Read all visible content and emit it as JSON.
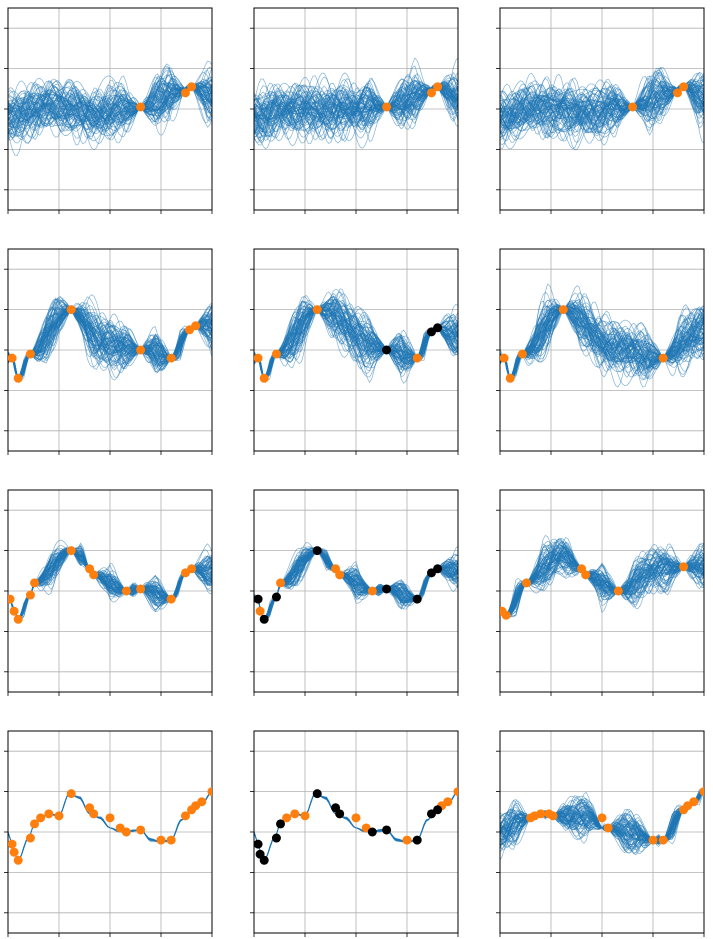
{
  "figure": {
    "rows": 4,
    "cols": 3,
    "colors": {
      "samples": "#1f77b4",
      "observed": "#ff7f0e",
      "highlighted": "#000000",
      "grid": "#b0b0b0",
      "axes": "#000000"
    }
  },
  "chart_data": [
    {
      "type": "line",
      "panel": "r1c1",
      "xlim": [
        0,
        1
      ],
      "ylim": [
        -2.5,
        2.5
      ],
      "grid": true,
      "sample_amplitude": 0.55,
      "sample_count": 80,
      "mean": {
        "x": [
          0,
          0.2,
          0.4,
          0.66,
          0.82,
          0.9,
          1
        ],
        "y": [
          -0.2,
          0.05,
          -0.1,
          0.05,
          0.4,
          0.55,
          0.3
        ]
      },
      "points_observed": {
        "x": [
          0.65,
          0.87,
          0.9
        ],
        "y": [
          0.05,
          0.4,
          0.55
        ]
      },
      "points_highlighted": {
        "x": [],
        "y": []
      }
    },
    {
      "type": "line",
      "panel": "r1c2",
      "xlim": [
        0,
        1
      ],
      "ylim": [
        -2.5,
        2.5
      ],
      "grid": true,
      "sample_amplitude": 0.55,
      "sample_count": 80,
      "mean": {
        "x": [
          0,
          0.2,
          0.4,
          0.65,
          0.82,
          0.9,
          1
        ],
        "y": [
          -0.2,
          0.05,
          -0.1,
          0.05,
          0.4,
          0.55,
          0.3
        ]
      },
      "points_observed": {
        "x": [
          0.65,
          0.87,
          0.9
        ],
        "y": [
          0.05,
          0.4,
          0.55
        ]
      },
      "points_highlighted": {
        "x": [],
        "y": []
      }
    },
    {
      "type": "line",
      "panel": "r1c3",
      "xlim": [
        0,
        1
      ],
      "ylim": [
        -2.5,
        2.5
      ],
      "grid": true,
      "sample_amplitude": 0.55,
      "sample_count": 80,
      "mean": {
        "x": [
          0,
          0.2,
          0.4,
          0.65,
          0.82,
          0.9,
          1
        ],
        "y": [
          -0.2,
          0.05,
          -0.1,
          0.05,
          0.4,
          0.55,
          0.3
        ]
      },
      "points_observed": {
        "x": [
          0.65,
          0.87,
          0.9
        ],
        "y": [
          0.05,
          0.4,
          0.55
        ]
      },
      "points_highlighted": {
        "x": [],
        "y": []
      }
    },
    {
      "type": "line",
      "panel": "r2c1",
      "xlim": [
        0,
        1
      ],
      "ylim": [
        -2.5,
        2.5
      ],
      "grid": true,
      "sample_amplitude": 0.55,
      "sample_count": 80,
      "mean": {
        "x": [
          0.02,
          0.05,
          0.11,
          0.3,
          0.48,
          0.65,
          0.8,
          0.89,
          0.92,
          1
        ],
        "y": [
          -0.2,
          -0.7,
          -0.1,
          1.0,
          0.2,
          0.0,
          -0.2,
          0.5,
          0.6,
          0.6
        ]
      },
      "points_observed": {
        "x": [
          0.02,
          0.05,
          0.11,
          0.31,
          0.65,
          0.8,
          0.89,
          0.92
        ],
        "y": [
          -0.2,
          -0.7,
          -0.1,
          1.0,
          0.0,
          -0.2,
          0.5,
          0.6
        ]
      },
      "points_highlighted": {
        "x": [],
        "y": []
      }
    },
    {
      "type": "line",
      "panel": "r2c2",
      "xlim": [
        0,
        1
      ],
      "ylim": [
        -2.5,
        2.5
      ],
      "grid": true,
      "sample_amplitude": 0.55,
      "sample_count": 80,
      "mean": {
        "x": [
          0.02,
          0.05,
          0.11,
          0.31,
          0.65,
          0.8,
          0.87,
          0.9,
          1
        ],
        "y": [
          -0.2,
          -0.7,
          -0.1,
          1.0,
          0.0,
          -0.2,
          0.45,
          0.55,
          0.3
        ]
      },
      "points_observed": {
        "x": [
          0.02,
          0.05,
          0.11,
          0.31,
          0.8
        ],
        "y": [
          -0.2,
          -0.7,
          -0.1,
          1.0,
          -0.2
        ]
      },
      "points_highlighted": {
        "x": [
          0.65,
          0.87,
          0.9
        ],
        "y": [
          0.0,
          0.45,
          0.55
        ]
      }
    },
    {
      "type": "line",
      "panel": "r2c3",
      "xlim": [
        0,
        1
      ],
      "ylim": [
        -2.5,
        2.5
      ],
      "grid": true,
      "sample_amplitude": 0.55,
      "sample_count": 80,
      "mean": {
        "x": [
          0.02,
          0.05,
          0.11,
          0.31,
          0.55,
          0.8,
          1
        ],
        "y": [
          -0.2,
          -0.7,
          -0.1,
          1.0,
          0.1,
          -0.2,
          0.5
        ]
      },
      "points_observed": {
        "x": [
          0.02,
          0.05,
          0.11,
          0.31,
          0.8
        ],
        "y": [
          -0.2,
          -0.7,
          -0.1,
          1.0,
          -0.2
        ]
      },
      "points_highlighted": {
        "x": [],
        "y": []
      }
    },
    {
      "type": "line",
      "panel": "r3c1",
      "xlim": [
        0,
        1
      ],
      "ylim": [
        -2.5,
        2.5
      ],
      "grid": true,
      "sample_amplitude": 0.4,
      "sample_count": 80,
      "mean": {
        "x": [
          0.01,
          0.03,
          0.05,
          0.11,
          0.13,
          0.31,
          0.36,
          0.4,
          0.42,
          0.58,
          0.65,
          0.8,
          0.87,
          0.9,
          1
        ],
        "y": [
          -0.2,
          -0.5,
          -0.7,
          -0.1,
          0.2,
          1.0,
          0.85,
          0.55,
          0.4,
          0.0,
          0.05,
          -0.2,
          0.45,
          0.55,
          0.5
        ]
      },
      "points_observed": {
        "x": [
          0.01,
          0.03,
          0.05,
          0.11,
          0.13,
          0.31,
          0.4,
          0.42,
          0.58,
          0.65,
          0.8,
          0.87,
          0.9
        ],
        "y": [
          -0.2,
          -0.5,
          -0.7,
          -0.1,
          0.2,
          1.0,
          0.55,
          0.4,
          0.0,
          0.05,
          -0.2,
          0.45,
          0.55
        ]
      },
      "points_highlighted": {
        "x": [],
        "y": []
      }
    },
    {
      "type": "line",
      "panel": "r3c2",
      "xlim": [
        0,
        1
      ],
      "ylim": [
        -2.5,
        2.5
      ],
      "grid": true,
      "sample_amplitude": 0.4,
      "sample_count": 80,
      "mean": {
        "x": [
          0.02,
          0.03,
          0.05,
          0.11,
          0.13,
          0.31,
          0.4,
          0.42,
          0.58,
          0.65,
          0.8,
          0.87,
          0.9,
          1
        ],
        "y": [
          -0.2,
          -0.5,
          -0.7,
          -0.15,
          0.2,
          1.0,
          0.55,
          0.4,
          0.0,
          0.05,
          -0.2,
          0.45,
          0.55,
          0.5
        ]
      },
      "points_observed": {
        "x": [
          0.03,
          0.13,
          0.4,
          0.42,
          0.58
        ],
        "y": [
          -0.5,
          0.2,
          0.55,
          0.4,
          0.0
        ]
      },
      "points_highlighted": {
        "x": [
          0.02,
          0.05,
          0.11,
          0.31,
          0.65,
          0.8,
          0.87,
          0.9
        ],
        "y": [
          -0.2,
          -0.7,
          -0.15,
          1.0,
          0.05,
          -0.2,
          0.45,
          0.55
        ]
      }
    },
    {
      "type": "line",
      "panel": "r3c3",
      "xlim": [
        0,
        1
      ],
      "ylim": [
        -2.5,
        2.5
      ],
      "grid": true,
      "sample_amplitude": 0.45,
      "sample_count": 80,
      "mean": {
        "x": [
          0.01,
          0.03,
          0.13,
          0.3,
          0.4,
          0.42,
          0.58,
          0.8,
          0.9,
          1
        ],
        "y": [
          -0.5,
          -0.6,
          0.2,
          0.9,
          0.55,
          0.4,
          0.0,
          0.6,
          0.6,
          0.6
        ]
      },
      "points_observed": {
        "x": [
          0.01,
          0.03,
          0.13,
          0.4,
          0.42,
          0.58,
          0.9
        ],
        "y": [
          -0.5,
          -0.6,
          0.2,
          0.55,
          0.4,
          0.0,
          0.6
        ]
      },
      "points_highlighted": {
        "x": [],
        "y": []
      }
    },
    {
      "type": "line",
      "panel": "r4c1",
      "xlim": [
        0,
        1
      ],
      "ylim": [
        -2.5,
        2.5
      ],
      "grid": true,
      "sample_amplitude": 0.06,
      "sample_count": 25,
      "mean": {
        "x": [
          0.0,
          0.02,
          0.03,
          0.05,
          0.1,
          0.13,
          0.16,
          0.2,
          0.25,
          0.3,
          0.35,
          0.4,
          0.45,
          0.5,
          0.55,
          0.65,
          0.7,
          0.75,
          0.8,
          0.85,
          0.9,
          0.95,
          1.0
        ],
        "y": [
          0.0,
          -0.3,
          -0.5,
          -0.7,
          -0.15,
          0.2,
          0.35,
          0.45,
          0.4,
          0.95,
          0.85,
          0.45,
          0.35,
          0.1,
          0.0,
          0.05,
          -0.2,
          -0.25,
          -0.2,
          0.3,
          0.55,
          0.7,
          1.0
        ]
      },
      "points_observed": {
        "x": [
          0.02,
          0.03,
          0.05,
          0.11,
          0.13,
          0.16,
          0.2,
          0.25,
          0.31,
          0.4,
          0.42,
          0.5,
          0.55,
          0.58,
          0.65,
          0.75,
          0.8,
          0.87,
          0.9,
          0.92,
          0.95,
          1.0
        ],
        "y": [
          -0.3,
          -0.5,
          -0.7,
          -0.15,
          0.2,
          0.35,
          0.45,
          0.4,
          0.95,
          0.6,
          0.45,
          0.35,
          0.1,
          0.0,
          0.05,
          -0.2,
          -0.2,
          0.4,
          0.55,
          0.65,
          0.75,
          1.0
        ]
      },
      "points_highlighted": {
        "x": [],
        "y": []
      }
    },
    {
      "type": "line",
      "panel": "r4c2",
      "xlim": [
        0,
        1
      ],
      "ylim": [
        -2.5,
        2.5
      ],
      "grid": true,
      "sample_amplitude": 0.06,
      "sample_count": 25,
      "mean": {
        "x": [
          0.0,
          0.02,
          0.03,
          0.05,
          0.1,
          0.13,
          0.16,
          0.2,
          0.25,
          0.3,
          0.35,
          0.4,
          0.45,
          0.5,
          0.55,
          0.65,
          0.7,
          0.75,
          0.8,
          0.85,
          0.9,
          0.95,
          1.0
        ],
        "y": [
          0.0,
          -0.3,
          -0.5,
          -0.7,
          -0.15,
          0.2,
          0.35,
          0.45,
          0.4,
          0.95,
          0.85,
          0.45,
          0.35,
          0.1,
          0.0,
          0.05,
          -0.2,
          -0.25,
          -0.2,
          0.3,
          0.55,
          0.7,
          1.0
        ]
      },
      "points_observed": {
        "x": [
          0.16,
          0.2,
          0.25,
          0.5,
          0.55,
          0.75,
          0.92,
          0.95,
          1.0
        ],
        "y": [
          0.35,
          0.45,
          0.4,
          0.35,
          0.1,
          -0.2,
          0.65,
          0.75,
          1.0
        ]
      },
      "points_highlighted": {
        "x": [
          0.02,
          0.03,
          0.05,
          0.11,
          0.13,
          0.31,
          0.4,
          0.42,
          0.58,
          0.65,
          0.8,
          0.87,
          0.9
        ],
        "y": [
          -0.3,
          -0.55,
          -0.7,
          -0.15,
          0.2,
          0.95,
          0.6,
          0.45,
          0.0,
          0.05,
          -0.2,
          0.45,
          0.55
        ]
      }
    },
    {
      "type": "line",
      "panel": "r4c3",
      "xlim": [
        0,
        1
      ],
      "ylim": [
        -2.5,
        2.5
      ],
      "grid": true,
      "sample_amplitude": 0.45,
      "sample_count": 80,
      "mean": {
        "x": [
          0.0,
          0.15,
          0.2,
          0.25,
          0.3,
          0.45,
          0.5,
          0.6,
          0.75,
          0.8,
          0.9,
          0.95,
          1.0
        ],
        "y": [
          0.0,
          0.35,
          0.45,
          0.4,
          0.4,
          0.35,
          0.1,
          0.05,
          -0.2,
          -0.2,
          0.55,
          0.75,
          1.0
        ]
      },
      "points_observed": {
        "x": [
          0.15,
          0.17,
          0.2,
          0.24,
          0.26,
          0.5,
          0.53,
          0.75,
          0.8,
          0.9,
          0.92,
          0.95,
          1.0
        ],
        "y": [
          0.35,
          0.4,
          0.45,
          0.45,
          0.4,
          0.35,
          0.1,
          -0.2,
          -0.2,
          0.55,
          0.65,
          0.75,
          1.0
        ]
      },
      "points_highlighted": {
        "x": [],
        "y": []
      }
    }
  ]
}
